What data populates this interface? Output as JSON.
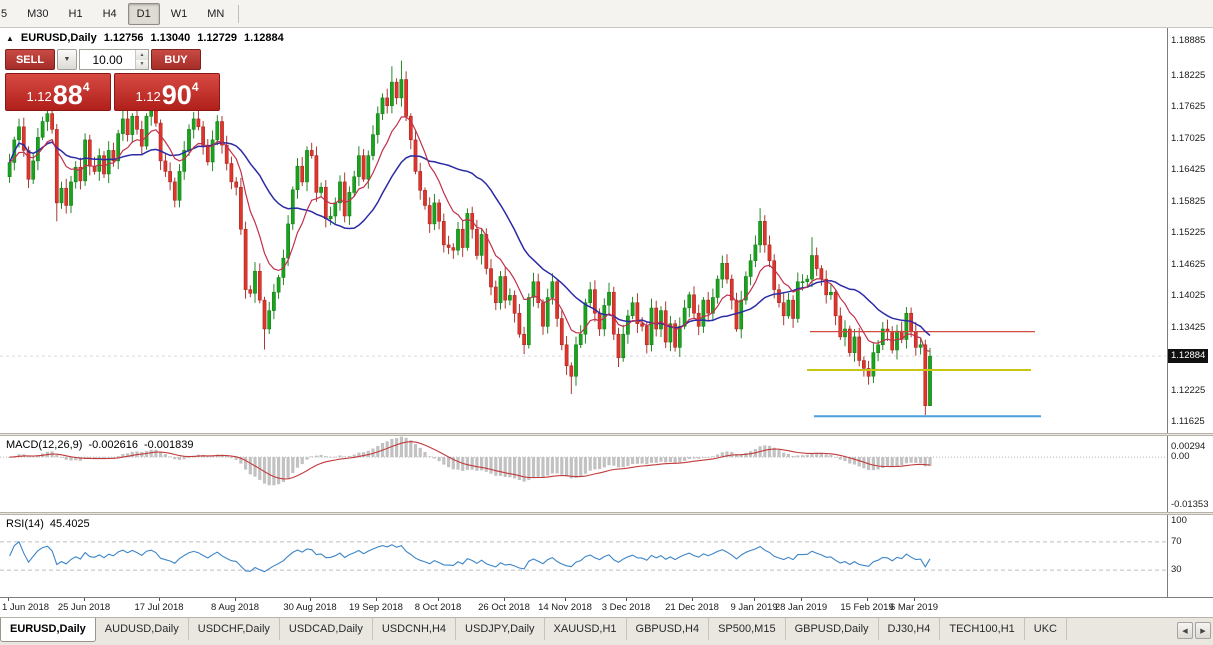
{
  "icons": {
    "collapse": "▲",
    "dropdown": "▼",
    "spin_up": "▲",
    "spin_down": "▼",
    "scroll_left": "◀",
    "scroll_right": "▶"
  },
  "toolbar": {
    "timeframes": [
      {
        "label": "5",
        "active": false,
        "clipped": true
      },
      {
        "label": "M30",
        "active": false
      },
      {
        "label": "H1",
        "active": false
      },
      {
        "label": "H4",
        "active": false
      },
      {
        "label": "D1",
        "active": true
      },
      {
        "label": "W1",
        "active": false
      },
      {
        "label": "MN",
        "active": false
      }
    ]
  },
  "chart": {
    "title": {
      "symbol": "EURUSD,Daily",
      "open": "1.12756",
      "high": "1.13040",
      "low": "1.12729",
      "close": "1.12884"
    },
    "trade_panel": {
      "sell_label": "SELL",
      "buy_label": "BUY",
      "volume": "10.00",
      "sell_price": {
        "prefix": "1.12",
        "big": "88",
        "sup": "4"
      },
      "buy_price": {
        "prefix": "1.12",
        "big": "90",
        "sup": "4"
      }
    },
    "price_axis": {
      "labels": [
        "1.18885",
        "1.18225",
        "1.17625",
        "1.17025",
        "1.16425",
        "1.15825",
        "1.15225",
        "1.14625",
        "1.14025",
        "1.13425",
        "1.12225",
        "1.11625"
      ],
      "current": "1.12884"
    }
  },
  "chart_data": {
    "type": "candlestick",
    "symbol": "EURUSD",
    "timeframe": "Daily",
    "ohlc_current": {
      "open": 1.12756,
      "high": 1.1304,
      "low": 1.12729,
      "close": 1.12884
    },
    "current_price": 1.12884,
    "price_scale": {
      "max": 1.1913,
      "min": 1.1142
    },
    "candles": {
      "first_open": 1.163,
      "closes": [
        1.1657,
        1.17,
        1.1725,
        1.168,
        1.1625,
        1.166,
        1.1705,
        1.1735,
        1.175,
        1.172,
        1.158,
        1.1608,
        1.1575,
        1.162,
        1.1648,
        1.1622,
        1.17,
        1.165,
        1.164,
        1.167,
        1.1635,
        1.168,
        1.166,
        1.1712,
        1.174,
        1.171,
        1.1745,
        1.172,
        1.1688,
        1.1745,
        1.176,
        1.1732,
        1.166,
        1.164,
        1.162,
        1.1585,
        1.164,
        1.168,
        1.172,
        1.174,
        1.1725,
        1.169,
        1.1658,
        1.17,
        1.1735,
        1.169,
        1.1655,
        1.162,
        1.161,
        1.153,
        1.1415,
        1.1408,
        1.145,
        1.1395,
        1.134,
        1.1375,
        1.141,
        1.1438,
        1.1475,
        1.154,
        1.1605,
        1.165,
        1.162,
        1.168,
        1.167,
        1.16,
        1.161,
        1.155,
        1.1555,
        1.158,
        1.162,
        1.1555,
        1.16,
        1.163,
        1.167,
        1.1625,
        1.167,
        1.171,
        1.175,
        1.178,
        1.1765,
        1.181,
        1.178,
        1.1815,
        1.1745,
        1.17,
        1.164,
        1.1604,
        1.1575,
        1.154,
        1.158,
        1.1545,
        1.15,
        1.1495,
        1.149,
        1.153,
        1.1495,
        1.156,
        1.153,
        1.148,
        1.152,
        1.1455,
        1.142,
        1.139,
        1.144,
        1.1395,
        1.1404,
        1.137,
        1.133,
        1.131,
        1.14,
        1.143,
        1.139,
        1.1345,
        1.14,
        1.143,
        1.136,
        1.131,
        1.127,
        1.125,
        1.131,
        1.133,
        1.139,
        1.1415,
        1.137,
        1.134,
        1.1385,
        1.141,
        1.133,
        1.1285,
        1.133,
        1.1365,
        1.139,
        1.135,
        1.1345,
        1.131,
        1.138,
        1.134,
        1.1375,
        1.1315,
        1.135,
        1.1305,
        1.1345,
        1.138,
        1.1405,
        1.137,
        1.1345,
        1.1395,
        1.137,
        1.14,
        1.1435,
        1.1465,
        1.1435,
        1.1395,
        1.134,
        1.1395,
        1.144,
        1.147,
        1.15,
        1.1545,
        1.15,
        1.147,
        1.1415,
        1.139,
        1.1365,
        1.1395,
        1.136,
        1.143,
        1.143,
        1.1435,
        1.148,
        1.1455,
        1.1435,
        1.1405,
        1.141,
        1.1365,
        1.1325,
        1.134,
        1.1295,
        1.1325,
        1.128,
        1.1265,
        1.125,
        1.1295,
        1.131,
        1.134,
        1.1335,
        1.13,
        1.1336,
        1.132,
        1.137,
        1.1335,
        1.1305,
        1.131,
        1.1194,
        1.12884
      ],
      "overrides": {
        "10": {
          "low": 1.1545
        },
        "54": {
          "low": 1.1301
        },
        "81": {
          "high": 1.184
        },
        "83": {
          "high": 1.1851
        },
        "119": {
          "low": 1.1216
        },
        "159": {
          "high": 1.157
        },
        "170": {
          "high": 1.1515
        },
        "182": {
          "low": 1.1234
        },
        "194": {
          "low": 1.1176
        },
        "195": {
          "high": 1.1304,
          "low": 1.12729
        }
      }
    },
    "moving_averages": [
      {
        "type": "ema",
        "period": 10,
        "color": "#c1304b"
      },
      {
        "type": "sma",
        "period": 25,
        "color": "#2b2ba6"
      }
    ],
    "hlines": [
      {
        "price": 1.1335,
        "color": "#d04a42",
        "width": 1.2,
        "x1": 0.695,
        "x2": 0.888
      },
      {
        "price": 1.1262,
        "color": "#c6c613",
        "width": 2,
        "x1": 0.692,
        "x2": 0.884
      },
      {
        "price": 1.1174,
        "color": "#4b9fdd",
        "width": 2,
        "x1": 0.698,
        "x2": 0.893
      }
    ],
    "macd": {
      "label": "MACD(12,26,9)",
      "value_main": "-0.002616",
      "value_signal": "-0.001839",
      "fast": 12,
      "slow": 26,
      "signal_period": 9,
      "axis": [
        "0.00294",
        "0.00",
        "-0.01353"
      ],
      "scale": {
        "max": 0.006,
        "min": -0.0156
      },
      "histogram_color": "#c2c2c2",
      "signal_color": "#c23a3a"
    },
    "rsi": {
      "label": "RSI(14)",
      "value": "45.4025",
      "period": 14,
      "axis": [
        "100",
        "70",
        "30"
      ],
      "levels": [
        70,
        30
      ],
      "scale": {
        "max": 108,
        "min": -8
      },
      "color": "#3d85c8"
    },
    "x_labels": [
      {
        "label": "1 Jun 2018",
        "bar": 0
      },
      {
        "label": "25 Jun 2018",
        "bar": 16
      },
      {
        "label": "17 Jul 2018",
        "bar": 32
      },
      {
        "label": "8 Aug 2018",
        "bar": 48
      },
      {
        "label": "30 Aug 2018",
        "bar": 64
      },
      {
        "label": "19 Sep 2018",
        "bar": 78
      },
      {
        "label": "8 Oct 2018",
        "bar": 91
      },
      {
        "label": "26 Oct 2018",
        "bar": 105
      },
      {
        "label": "14 Nov 2018",
        "bar": 118
      },
      {
        "label": "3 Dec 2018",
        "bar": 131
      },
      {
        "label": "21 Dec 2018",
        "bar": 145
      },
      {
        "label": "9 Jan 2019",
        "bar": 158
      },
      {
        "label": "28 Jan 2019",
        "bar": 168
      },
      {
        "label": "15 Feb 2019",
        "bar": 182
      },
      {
        "label": "6 Mar 2019",
        "bar": 192
      }
    ]
  },
  "tabbar": {
    "tabs": [
      {
        "label": "EURUSD,Daily",
        "active": true
      },
      {
        "label": "AUDUSD,Daily"
      },
      {
        "label": "USDCHF,Daily"
      },
      {
        "label": "USDCAD,Daily"
      },
      {
        "label": "USDCNH,H4"
      },
      {
        "label": "USDJPY,Daily"
      },
      {
        "label": "XAUUSD,H1"
      },
      {
        "label": "GBPUSD,H4"
      },
      {
        "label": "SP500,M15"
      },
      {
        "label": "GBPUSD,Daily"
      },
      {
        "label": "DJ30,H4"
      },
      {
        "label": "TECH100,H1"
      },
      {
        "label": "UKC"
      }
    ]
  }
}
